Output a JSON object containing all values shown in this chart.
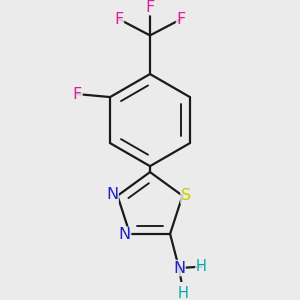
{
  "background_color": "#ebebeb",
  "bond_color": "#1a1a1a",
  "bond_width": 1.6,
  "atom_colors": {
    "F": "#dd1f9e",
    "N": "#2222cc",
    "S": "#cccc00",
    "H": "#00aaaa"
  },
  "font_size_atoms": 11.5,
  "font_size_H": 10.5
}
